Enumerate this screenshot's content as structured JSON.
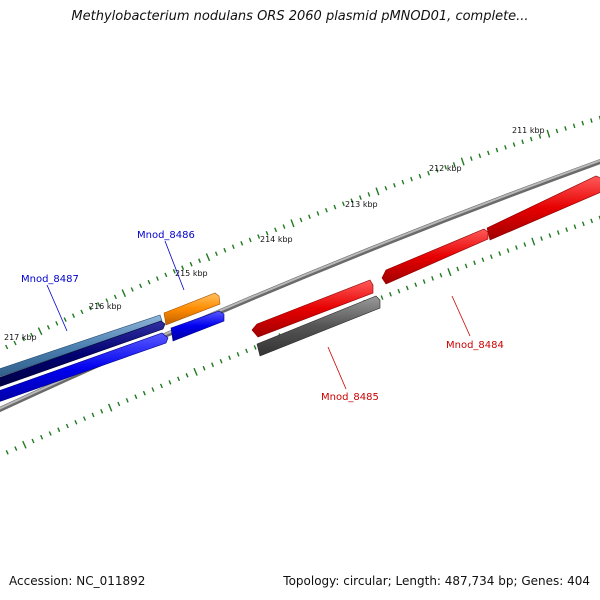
{
  "title": "Methylobacterium nodulans ORS 2060 plasmid pMNOD01, complete...",
  "accession": "Accession: NC_011892",
  "summary": "Topology: circular; Length: 487,734 bp; Genes: 404",
  "colors": {
    "backbone": "#8c8c8c",
    "ticks": "#1f7a1f",
    "gene_red": "#e60000",
    "gene_blue": "#0000ee",
    "gene_navy": "#000070",
    "gene_steel": "#4a7fb0",
    "gene_orange": "#ff8c00",
    "gene_gray": "#555555"
  },
  "kbp_labels": [
    "211 kbp",
    "212 kbp",
    "213 kbp",
    "214 kbp",
    "215 kbp",
    "216 kbp",
    "217 kbp"
  ],
  "genes": [
    {
      "label": "Mnod_8484",
      "color": "#cc0000"
    },
    {
      "label": "Mnod_8485",
      "color": "#cc0000"
    },
    {
      "label": "Mnod_8486",
      "color": "#0000cc"
    },
    {
      "label": "Mnod_8487",
      "color": "#0000cc"
    }
  ]
}
